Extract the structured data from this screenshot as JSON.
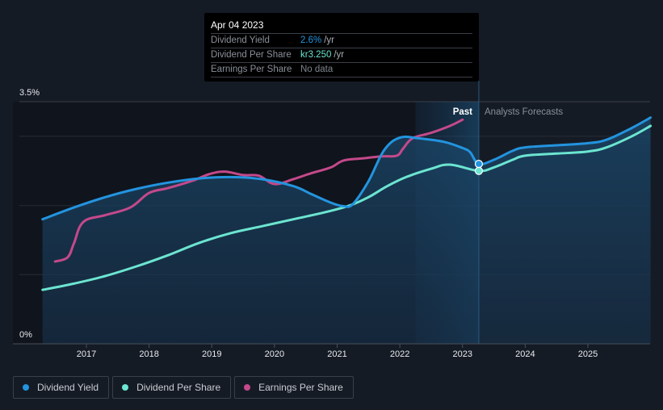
{
  "tooltip": {
    "date": "Apr 04 2023",
    "rows": [
      {
        "label": "Dividend Yield",
        "value": "2.6%",
        "unit": "/yr",
        "color": "#2394df"
      },
      {
        "label": "Dividend Per Share",
        "value": "kr3.250",
        "unit": "/yr",
        "color": "#6ce5d1"
      },
      {
        "label": "Earnings Per Share",
        "value": "No data",
        "unit": "",
        "color": "#7e838b"
      }
    ]
  },
  "annotations": {
    "past": "Past",
    "forecast": "Analysts Forecasts"
  },
  "legend": [
    {
      "label": "Dividend Yield",
      "color": "#2394df"
    },
    {
      "label": "Dividend Per Share",
      "color": "#6ce5d1"
    },
    {
      "label": "Earnings Per Share",
      "color": "#c4498b"
    }
  ],
  "chart_data": {
    "type": "line",
    "title": "",
    "xlabel": "",
    "ylabel": "",
    "y_tick_labels": [
      "0%",
      "3.5%"
    ],
    "ylim": [
      0,
      3.5
    ],
    "xlim": [
      2016.0,
      2026.0
    ],
    "x_ticks": [
      2017,
      2018,
      2019,
      2020,
      2021,
      2022,
      2023,
      2024,
      2025
    ],
    "grid": true,
    "past_forecast_divider": 2023.26,
    "highlight_range": [
      2022.25,
      2023.26
    ],
    "series": [
      {
        "name": "Dividend Yield",
        "color": "#2394df",
        "axis": "percent",
        "filled": true,
        "points": [
          [
            2016.3,
            1.8
          ],
          [
            2016.8,
            1.97
          ],
          [
            2017.3,
            2.12
          ],
          [
            2017.8,
            2.24
          ],
          [
            2018.3,
            2.33
          ],
          [
            2018.8,
            2.39
          ],
          [
            2019.3,
            2.41
          ],
          [
            2019.8,
            2.38
          ],
          [
            2020.3,
            2.28
          ],
          [
            2020.6,
            2.16
          ],
          [
            2020.9,
            2.04
          ],
          [
            2021.1,
            1.99
          ],
          [
            2021.25,
            2.02
          ],
          [
            2021.5,
            2.35
          ],
          [
            2021.75,
            2.8
          ],
          [
            2022.0,
            2.98
          ],
          [
            2022.3,
            2.97
          ],
          [
            2022.7,
            2.92
          ],
          [
            2023.0,
            2.83
          ],
          [
            2023.12,
            2.77
          ],
          [
            2023.26,
            2.6
          ],
          [
            2023.5,
            2.66
          ],
          [
            2023.8,
            2.79
          ],
          [
            2024.0,
            2.84
          ],
          [
            2024.5,
            2.87
          ],
          [
            2025.0,
            2.9
          ],
          [
            2025.3,
            2.95
          ],
          [
            2025.7,
            3.12
          ],
          [
            2026.0,
            3.27
          ]
        ]
      },
      {
        "name": "Dividend Per Share",
        "color": "#6ce5d1",
        "axis": "scaled",
        "filled": false,
        "points": [
          [
            2016.3,
            0.78
          ],
          [
            2016.8,
            0.87
          ],
          [
            2017.3,
            0.98
          ],
          [
            2017.8,
            1.12
          ],
          [
            2018.3,
            1.28
          ],
          [
            2018.8,
            1.46
          ],
          [
            2019.3,
            1.6
          ],
          [
            2019.8,
            1.7
          ],
          [
            2020.3,
            1.8
          ],
          [
            2020.8,
            1.9
          ],
          [
            2021.2,
            2.0
          ],
          [
            2021.5,
            2.12
          ],
          [
            2021.8,
            2.28
          ],
          [
            2022.1,
            2.41
          ],
          [
            2022.5,
            2.53
          ],
          [
            2022.8,
            2.59
          ],
          [
            2023.26,
            2.5
          ],
          [
            2023.5,
            2.55
          ],
          [
            2023.8,
            2.66
          ],
          [
            2024.0,
            2.72
          ],
          [
            2024.5,
            2.75
          ],
          [
            2025.0,
            2.78
          ],
          [
            2025.3,
            2.84
          ],
          [
            2025.7,
            3.0
          ],
          [
            2026.0,
            3.15
          ]
        ]
      },
      {
        "name": "Earnings Per Share",
        "color": "#c4498b",
        "axis": "scaled",
        "filled": false,
        "points": [
          [
            2016.5,
            1.19
          ],
          [
            2016.7,
            1.25
          ],
          [
            2016.8,
            1.45
          ],
          [
            2016.95,
            1.76
          ],
          [
            2017.3,
            1.86
          ],
          [
            2017.7,
            1.97
          ],
          [
            2018.0,
            2.18
          ],
          [
            2018.3,
            2.25
          ],
          [
            2018.7,
            2.36
          ],
          [
            2018.95,
            2.45
          ],
          [
            2019.2,
            2.49
          ],
          [
            2019.5,
            2.44
          ],
          [
            2019.75,
            2.43
          ],
          [
            2020.0,
            2.31
          ],
          [
            2020.3,
            2.38
          ],
          [
            2020.6,
            2.47
          ],
          [
            2020.9,
            2.55
          ],
          [
            2021.1,
            2.65
          ],
          [
            2021.4,
            2.68
          ],
          [
            2021.7,
            2.71
          ],
          [
            2021.95,
            2.72
          ],
          [
            2022.05,
            2.82
          ],
          [
            2022.2,
            2.97
          ],
          [
            2022.5,
            3.05
          ],
          [
            2022.8,
            3.15
          ],
          [
            2023.0,
            3.24
          ]
        ]
      }
    ]
  }
}
